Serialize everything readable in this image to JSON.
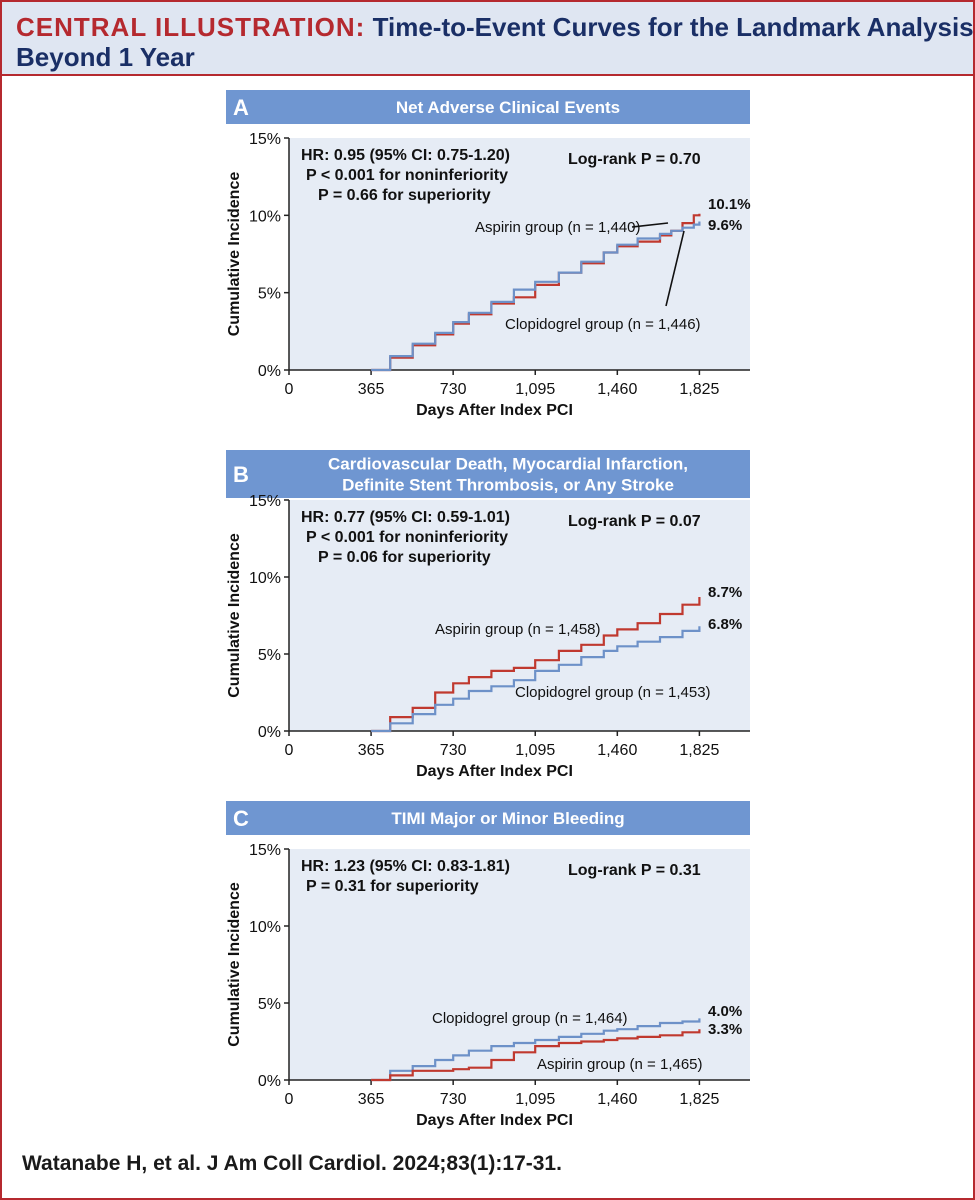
{
  "header": {
    "label": "CENTRAL ILLUSTRATION:",
    "title_line1": "Time-to-Event Curves for the Landmark Analysis",
    "title_line2": "Beyond 1 Year"
  },
  "colors": {
    "aspirin": "#c0392f",
    "clopidogrel": "#6d91c8",
    "panel_bar": "#6f96d1",
    "plot_bg": "#e6ecf5",
    "accent_red": "#b5292f",
    "navy": "#1a2f66"
  },
  "citation": "Watanabe H, et al. J Am Coll Cardiol. 2024;83(1):17-31.",
  "chart_data": [
    {
      "type": "line",
      "panel_letter": "A",
      "title_lines": [
        "Net Adverse Clinical Events"
      ],
      "xlabel": "Days After Index PCI",
      "ylabel": "Cumulative Incidence",
      "xticks": [
        "0",
        "365",
        "730",
        "1,095",
        "1,460",
        "1,825"
      ],
      "xtick_values": [
        0,
        365,
        730,
        1095,
        1460,
        1825
      ],
      "yticks": [
        "0%",
        "5%",
        "10%",
        "15%"
      ],
      "ytick_values": [
        0,
        5,
        10,
        15
      ],
      "xlim": [
        0,
        2050
      ],
      "ylim": [
        0,
        15
      ],
      "stats_left": [
        "HR: 0.95 (95% CI: 0.75-1.20)",
        "P < 0.001 for noninferiority",
        "P = 0.66 for superiority"
      ],
      "stats_right": "Log-rank P = 0.70",
      "series": [
        {
          "name": "Aspirin group (n = 1,440)",
          "end_label": "10.1%",
          "color": "#c0392f",
          "x": [
            365,
            450,
            550,
            650,
            730,
            800,
            900,
            1000,
            1095,
            1200,
            1300,
            1400,
            1460,
            1550,
            1650,
            1700,
            1750,
            1800,
            1825
          ],
          "y": [
            0,
            0.8,
            1.6,
            2.3,
            3.0,
            3.6,
            4.3,
            4.7,
            5.5,
            6.3,
            6.9,
            7.6,
            8.0,
            8.3,
            8.7,
            9.0,
            9.5,
            10.0,
            10.1
          ]
        },
        {
          "name": "Clopidogrel group (n = 1,446)",
          "end_label": "9.6%",
          "color": "#6d91c8",
          "x": [
            365,
            450,
            550,
            650,
            730,
            800,
            900,
            1000,
            1095,
            1200,
            1300,
            1400,
            1460,
            1550,
            1650,
            1700,
            1750,
            1800,
            1825
          ],
          "y": [
            0,
            0.9,
            1.7,
            2.4,
            3.1,
            3.7,
            4.4,
            5.2,
            5.7,
            6.3,
            7.0,
            7.6,
            8.1,
            8.5,
            8.8,
            9.0,
            9.2,
            9.4,
            9.6
          ]
        }
      ]
    },
    {
      "type": "line",
      "panel_letter": "B",
      "title_lines": [
        "Cardiovascular Death, Myocardial Infarction,",
        "Definite Stent Thrombosis, or Any Stroke"
      ],
      "xlabel": "Days After Index PCI",
      "ylabel": "Cumulative Incidence",
      "xticks": [
        "0",
        "365",
        "730",
        "1,095",
        "1,460",
        "1,825"
      ],
      "xtick_values": [
        0,
        365,
        730,
        1095,
        1460,
        1825
      ],
      "yticks": [
        "0%",
        "5%",
        "10%",
        "15%"
      ],
      "ytick_values": [
        0,
        5,
        10,
        15
      ],
      "xlim": [
        0,
        2050
      ],
      "ylim": [
        0,
        15
      ],
      "stats_left": [
        "HR: 0.77 (95% CI: 0.59-1.01)",
        "P < 0.001 for noninferiority",
        "P = 0.06 for superiority"
      ],
      "stats_right": "Log-rank P = 0.07",
      "series": [
        {
          "name": "Aspirin group (n = 1,458)",
          "end_label": "8.7%",
          "color": "#c0392f",
          "x": [
            365,
            450,
            550,
            650,
            730,
            800,
            900,
            1000,
            1095,
            1200,
            1300,
            1400,
            1460,
            1550,
            1650,
            1750,
            1825
          ],
          "y": [
            0,
            0.9,
            1.5,
            2.5,
            3.1,
            3.5,
            3.9,
            4.1,
            4.6,
            5.2,
            5.6,
            6.2,
            6.6,
            7.0,
            7.6,
            8.2,
            8.7
          ]
        },
        {
          "name": "Clopidogrel group (n = 1,453)",
          "end_label": "6.8%",
          "color": "#6d91c8",
          "x": [
            365,
            450,
            550,
            650,
            730,
            800,
            900,
            1000,
            1095,
            1200,
            1300,
            1400,
            1460,
            1550,
            1650,
            1750,
            1825
          ],
          "y": [
            0,
            0.5,
            1.1,
            1.7,
            2.1,
            2.6,
            2.9,
            3.3,
            3.9,
            4.3,
            4.8,
            5.2,
            5.5,
            5.8,
            6.1,
            6.5,
            6.8
          ]
        }
      ]
    },
    {
      "type": "line",
      "panel_letter": "C",
      "title_lines": [
        "TIMI Major or Minor Bleeding"
      ],
      "xlabel": "Days After Index PCI",
      "ylabel": "Cumulative Incidence",
      "xticks": [
        "0",
        "365",
        "730",
        "1,095",
        "1,460",
        "1,825"
      ],
      "xtick_values": [
        0,
        365,
        730,
        1095,
        1460,
        1825
      ],
      "yticks": [
        "0%",
        "5%",
        "10%",
        "15%"
      ],
      "ytick_values": [
        0,
        5,
        10,
        15
      ],
      "xlim": [
        0,
        2050
      ],
      "ylim": [
        0,
        15
      ],
      "stats_left": [
        "HR: 1.23 (95% CI: 0.83-1.81)",
        "P = 0.31 for superiority"
      ],
      "stats_right": "Log-rank P = 0.31",
      "series": [
        {
          "name": "Clopidogrel group (n = 1,464)",
          "end_label": "4.0%",
          "color": "#6d91c8",
          "x": [
            365,
            450,
            550,
            650,
            730,
            800,
            900,
            1000,
            1095,
            1200,
            1300,
            1400,
            1460,
            1550,
            1650,
            1750,
            1825
          ],
          "y": [
            0,
            0.6,
            0.9,
            1.3,
            1.6,
            1.9,
            2.2,
            2.4,
            2.6,
            2.8,
            3.0,
            3.2,
            3.3,
            3.5,
            3.7,
            3.8,
            4.0
          ]
        },
        {
          "name": "Aspirin group (n = 1,465)",
          "end_label": "3.3%",
          "color": "#c0392f",
          "x": [
            365,
            450,
            550,
            650,
            730,
            800,
            900,
            1000,
            1095,
            1200,
            1300,
            1400,
            1460,
            1550,
            1650,
            1750,
            1825
          ],
          "y": [
            0,
            0.3,
            0.6,
            0.6,
            0.7,
            0.8,
            1.3,
            1.8,
            2.2,
            2.4,
            2.5,
            2.6,
            2.7,
            2.8,
            2.9,
            3.1,
            3.3
          ]
        }
      ]
    }
  ]
}
